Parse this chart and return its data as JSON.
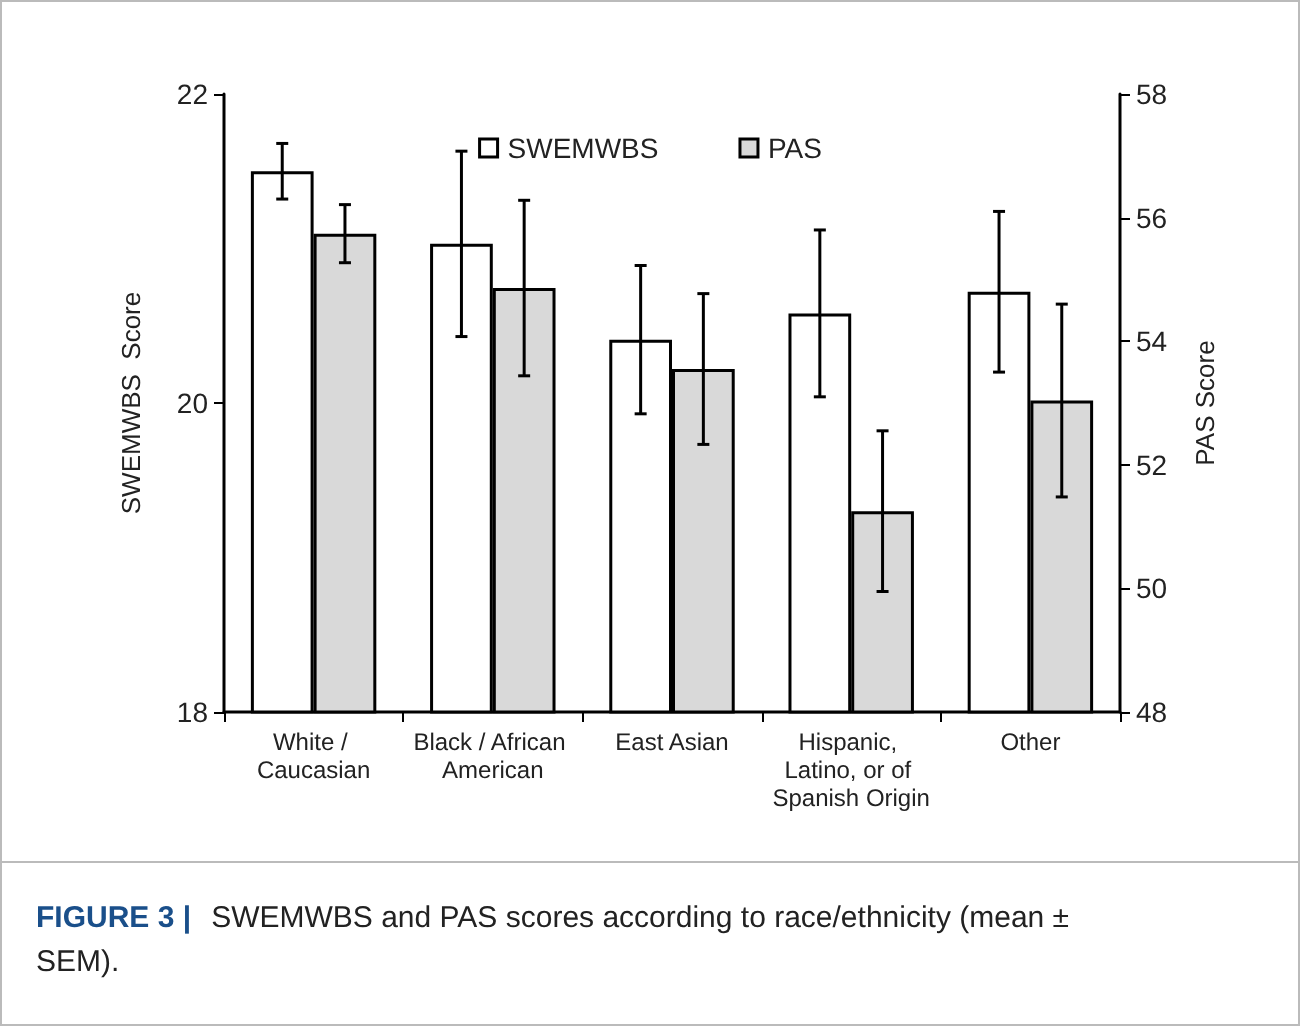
{
  "chart_data": {
    "type": "bar",
    "ylabel": "SWEMWBS  Score",
    "y2label": "PAS Score",
    "categories": [
      "White / Caucasian",
      "Black / African American",
      "East Asian",
      "Hispanic, Latino, or of Spanish Origin",
      "Other"
    ],
    "series": [
      {
        "name": "SWEMWBS",
        "color": "#ffffff",
        "values": [
          21.5,
          21.03,
          20.41,
          20.58,
          20.72
        ],
        "errors": [
          0.18,
          0.6,
          0.48,
          0.54,
          0.52
        ]
      },
      {
        "name": "PAS",
        "color": "#d9d9d9",
        "axis": "y2",
        "values": [
          55.74,
          54.86,
          53.55,
          51.25,
          53.04
        ],
        "errors": [
          0.47,
          1.42,
          1.22,
          1.3,
          1.56
        ]
      }
    ],
    "ylim": [
      18,
      22
    ],
    "yticks": [
      18,
      20,
      22
    ],
    "y2lim": [
      48,
      58
    ],
    "y2ticks": [
      48,
      50,
      52,
      54,
      56,
      58
    ],
    "legend": "top",
    "grid": false,
    "annotations": [
      "FIGURE 3 | SWEMWBS and PAS scores according to race/ethnicity (mean ± SEM)."
    ]
  }
}
